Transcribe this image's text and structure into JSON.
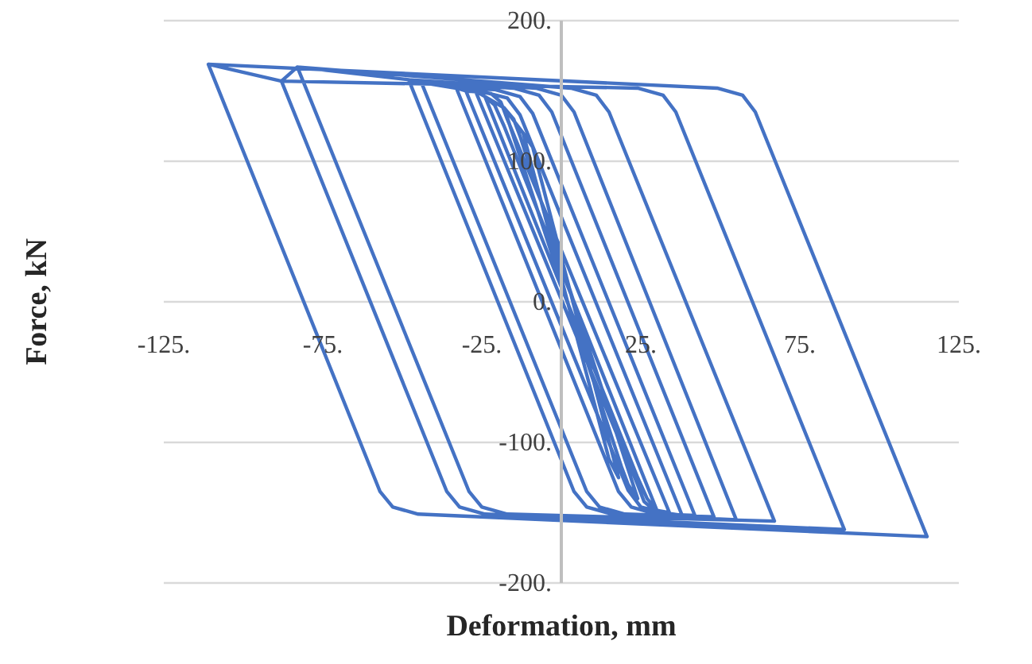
{
  "chart_data": {
    "type": "line",
    "xlabel": "Deformation, mm",
    "ylabel": "Force, kN",
    "xlim": [
      -125,
      125
    ],
    "ylim": [
      -200,
      200
    ],
    "xticks": [
      {
        "value": -125,
        "label": "-125."
      },
      {
        "value": -75,
        "label": "-75."
      },
      {
        "value": -25,
        "label": "-25."
      },
      {
        "value": 25,
        "label": "25."
      },
      {
        "value": 75,
        "label": "75."
      },
      {
        "value": 125,
        "label": "125."
      }
    ],
    "yticks": [
      {
        "value": -200,
        "label": "-200."
      },
      {
        "value": -100,
        "label": "-100."
      },
      {
        "value": 0,
        "label": "0."
      },
      {
        "value": 100,
        "label": "100."
      },
      {
        "value": 200,
        "label": "200."
      }
    ],
    "grid": "y",
    "series": [
      {
        "color": "#4472c4",
        "x": [
          -12,
          -9,
          18,
          15,
          -12,
          -18,
          -15,
          -13,
          24,
          21,
          19,
          -18,
          -24,
          -21,
          -18,
          30,
          27,
          24,
          -24,
          -27,
          -22,
          -19,
          -17,
          34,
          29,
          26,
          24,
          -27,
          -30,
          -24,
          -17,
          -13,
          38,
          32,
          25,
          21,
          -30,
          -33,
          -21,
          -13,
          -9,
          42,
          30,
          22,
          18,
          -33,
          -44,
          -15,
          -7,
          -3,
          48,
          20,
          12,
          8,
          -44,
          -48,
          -8,
          0,
          4,
          55,
          16,
          8,
          4,
          -48,
          -83,
          3,
          11,
          15,
          67,
          -17,
          -25,
          -29,
          -83,
          -88,
          24,
          32,
          36,
          89,
          -24,
          -32,
          -36,
          -88,
          -111,
          49,
          57,
          61,
          115,
          -45,
          -53,
          -57,
          -111
        ],
        "values": [
          120,
          110,
          -125,
          -112,
          120,
          138,
          130,
          118,
          -140,
          -130,
          -118,
          138,
          146,
          140,
          125,
          -148,
          -140,
          -125,
          146,
          150,
          148,
          142,
          130,
          -150,
          -148,
          -142,
          -130,
          150,
          150,
          149,
          145,
          133,
          -152,
          -150,
          -146,
          -134,
          150,
          152,
          151,
          146,
          134,
          -152,
          -151,
          -146,
          -135,
          152,
          156,
          152,
          147,
          135,
          -153,
          -151,
          -146,
          -135,
          156,
          158,
          152,
          147,
          135,
          -155,
          -151,
          -146,
          -135,
          158,
          167,
          152,
          147,
          135,
          -156,
          -151,
          -146,
          -135,
          167,
          157,
          152,
          147,
          135,
          -162,
          -151,
          -146,
          -135,
          157,
          169,
          152,
          147,
          135,
          -167,
          -151,
          -146,
          -135,
          169
        ]
      }
    ]
  }
}
